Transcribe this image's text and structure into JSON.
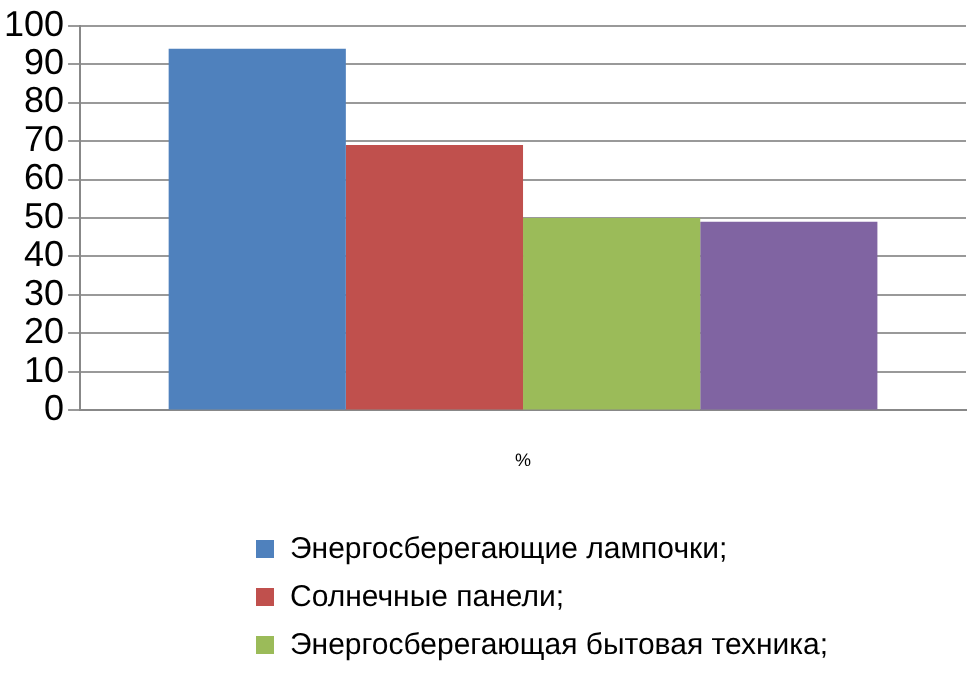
{
  "chart_data": {
    "type": "bar",
    "categories": [
      "%"
    ],
    "series": [
      {
        "name": "Энергосберегающие лампочки;",
        "color": "#4f81bd",
        "values": [
          94
        ]
      },
      {
        "name": "Солнечные панели;",
        "color": "#c0504d",
        "values": [
          69
        ]
      },
      {
        "name": "Энергосберегающая бытовая техника;",
        "color": "#9bbb59",
        "values": [
          50
        ]
      },
      {
        "color": "#8064a2",
        "values": [
          49
        ]
      }
    ],
    "ylim": [
      0,
      100
    ],
    "yticks": [
      0,
      10,
      20,
      30,
      40,
      50,
      60,
      70,
      80,
      90,
      100
    ],
    "grid": "y",
    "legend": "bottom"
  }
}
